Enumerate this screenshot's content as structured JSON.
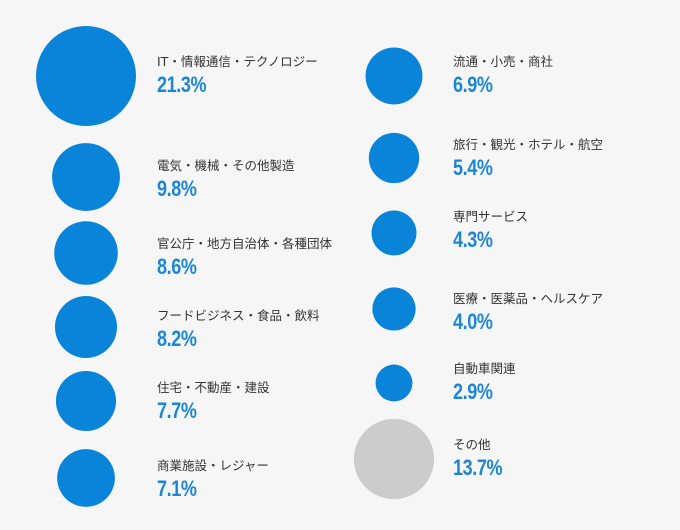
{
  "colors": {
    "accent": "#0a84d8",
    "other": "#cccccc",
    "text": "#333333",
    "value_text": "#1b86d6"
  },
  "chart_data": {
    "type": "bubble",
    "title": "",
    "series": [
      {
        "label": "IT・情報通信・テクノロジー",
        "value": 21.3,
        "value_text": "21.3%"
      },
      {
        "label": "電気・機械・その他製造",
        "value": 9.8,
        "value_text": "9.8%"
      },
      {
        "label": "官公庁・地方自治体・各種団体",
        "value": 8.6,
        "value_text": "8.6%"
      },
      {
        "label": "フードビジネス・食品・飲料",
        "value": 8.2,
        "value_text": "8.2%"
      },
      {
        "label": "住宅・不動産・建設",
        "value": 7.7,
        "value_text": "7.7%"
      },
      {
        "label": "商業施設・レジャー",
        "value": 7.1,
        "value_text": "7.1%"
      },
      {
        "label": "流通・小売・商社",
        "value": 6.9,
        "value_text": "6.9%"
      },
      {
        "label": "旅行・観光・ホテル・航空",
        "value": 5.4,
        "value_text": "5.4%"
      },
      {
        "label": "専門サービス",
        "value": 4.3,
        "value_text": "4.3%"
      },
      {
        "label": "医療・医薬品・ヘルスケア",
        "value": 4.0,
        "value_text": "4.0%"
      },
      {
        "label": "自動車関連",
        "value": 2.9,
        "value_text": "2.9%"
      },
      {
        "label": "その他",
        "value": 13.7,
        "value_text": "13.7%"
      }
    ]
  }
}
